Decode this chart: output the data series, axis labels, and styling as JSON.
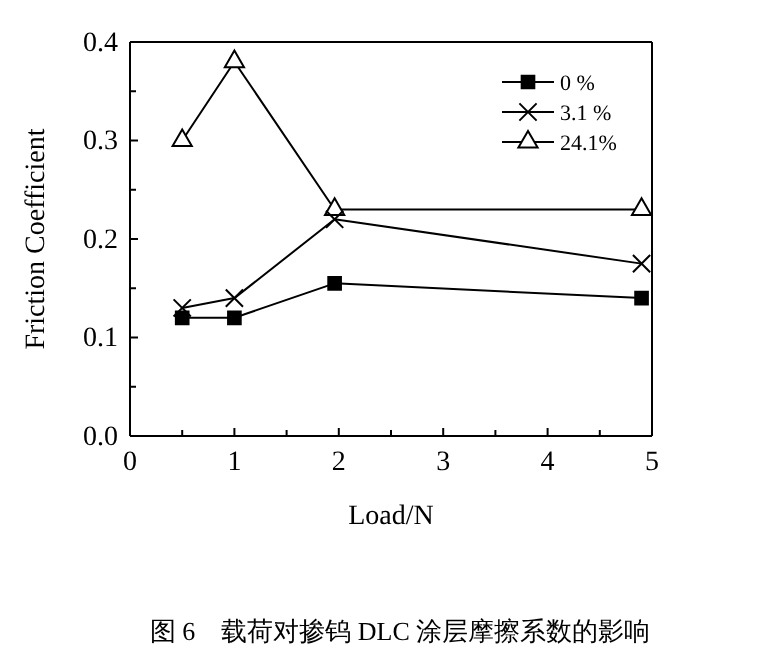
{
  "chart_data": {
    "type": "line",
    "xlabel": "Load/N",
    "ylabel": "Friction Coefficient",
    "xlim": [
      0,
      5
    ],
    "ylim": [
      0,
      0.4
    ],
    "xticks": [
      0,
      {
        "value": 0.5,
        "label": null
      },
      1,
      {
        "value": 1.5,
        "label": null
      },
      2,
      {
        "value": 2.5,
        "label": null
      },
      3,
      {
        "value": 3.5,
        "label": null
      },
      4,
      {
        "value": 4.5,
        "label": null
      },
      5
    ],
    "yticks": [
      {
        "value": 0,
        "label": "0.0"
      },
      {
        "value": 0.05,
        "label": null
      },
      0.1,
      {
        "value": 0.15,
        "label": null
      },
      0.2,
      {
        "value": 0.25,
        "label": null
      },
      0.3,
      {
        "value": 0.35,
        "label": null
      },
      0.4
    ],
    "x": [
      0.5,
      1,
      1.96,
      4.9
    ],
    "series": [
      {
        "name": "0 %",
        "color": "#000000",
        "marker": "square",
        "values": [
          0.12,
          0.12,
          0.155,
          0.14
        ]
      },
      {
        "name": "3.1 %",
        "color": "#000000",
        "marker": "cross",
        "values": [
          0.13,
          0.14,
          0.22,
          0.175
        ]
      },
      {
        "name": "24.1%",
        "color": "#000000",
        "marker": "triangle",
        "values": [
          0.3,
          0.38,
          0.23,
          0.23
        ]
      }
    ],
    "legend": "top right",
    "grid": false,
    "annotations": [
      "图 6　载荷对掺钨 DLC 涂层摩擦系数的影响"
    ]
  }
}
